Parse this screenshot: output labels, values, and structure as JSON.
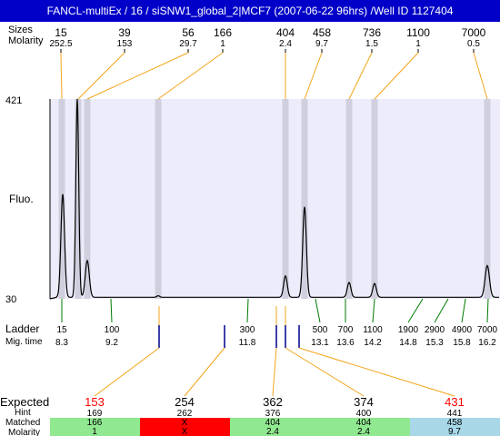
{
  "header": {
    "title": "FANCL-multiEx / 16 / siSNW1_global_2|MCF7 (2007-06-22 96hrs) /Well ID 1127404"
  },
  "labels": {
    "sizes": "Sizes",
    "molarity": "Molarity",
    "fluo": "Fluo.",
    "ladder": "Ladder",
    "mig_time": "Mig. time",
    "expected": "Expected",
    "hint": "Hint",
    "matched": "Matched",
    "molarity_bottom": "Molarity"
  },
  "chart_data": {
    "type": "line",
    "ylim": [
      30,
      421
    ],
    "y_ticks": [
      "421",
      "30"
    ],
    "ylabel": "Fluo.",
    "peaks": [
      {
        "size": "15",
        "molarity": "252.5"
      },
      {
        "size": "39",
        "molarity": "153"
      },
      {
        "size": "56",
        "molarity": "29.7"
      },
      {
        "size": "166",
        "molarity": "1"
      },
      {
        "size": "404",
        "molarity": "2.4"
      },
      {
        "size": "458",
        "molarity": "9.7"
      },
      {
        "size": "736",
        "molarity": "1.5"
      },
      {
        "size": "1100",
        "molarity": "1"
      },
      {
        "size": "7000",
        "molarity": "0.5"
      }
    ],
    "ladder": [
      {
        "size": "15",
        "mig_time": "8.3"
      },
      {
        "size": "100",
        "mig_time": "9.2"
      },
      {
        "size": "300",
        "mig_time": "11.8"
      },
      {
        "size": "500",
        "mig_time": "13.1"
      },
      {
        "size": "700",
        "mig_time": "13.6"
      },
      {
        "size": "1100",
        "mig_time": "14.2"
      },
      {
        "size": "1900",
        "mig_time": "14.8"
      },
      {
        "size": "2900",
        "mig_time": "15.3"
      },
      {
        "size": "4900",
        "mig_time": "15.8"
      },
      {
        "size": "7000",
        "mig_time": "16.2"
      }
    ],
    "expected": [
      {
        "expected": "153",
        "hint": "169",
        "matched": "166",
        "molarity": "1",
        "status": "matched",
        "color": "#ff0000"
      },
      {
        "expected": "254",
        "hint": "262",
        "matched": "X",
        "molarity": "X",
        "status": "missing",
        "color": "#000000"
      },
      {
        "expected": "362",
        "hint": "376",
        "matched": "404",
        "molarity": "2.4",
        "status": "matched",
        "color": "#000000"
      },
      {
        "expected": "374",
        "hint": "400",
        "matched": "404",
        "molarity": "2.4",
        "status": "matched",
        "color": "#000000"
      },
      {
        "expected": "431",
        "hint": "441",
        "matched": "458",
        "molarity": "9.7",
        "status": "other",
        "color": "#ff0000"
      }
    ],
    "colors": {
      "plot_bg": "#ececfa",
      "band": "#cfcfde",
      "connector": "#f2a51a",
      "ladder_tick": "#007a00",
      "matched": "#90e890",
      "missing": "#ff0000",
      "other": "#a8d8e8",
      "header": "#0000c8"
    }
  }
}
